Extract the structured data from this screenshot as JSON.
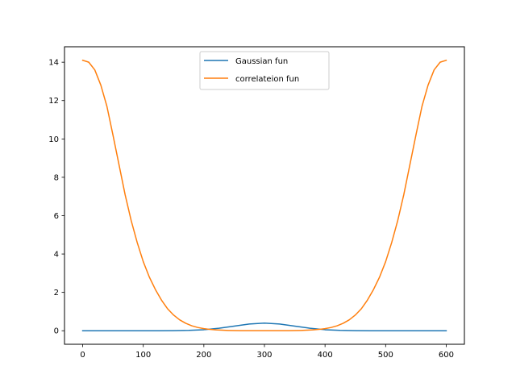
{
  "chart_data": {
    "type": "line",
    "title": "",
    "xlabel": "",
    "ylabel": "",
    "xlim": [
      -30,
      630
    ],
    "ylim": [
      -0.705,
      14.805
    ],
    "xticks": [
      0,
      100,
      200,
      300,
      400,
      500,
      600
    ],
    "yticks": [
      0,
      2,
      4,
      6,
      8,
      10,
      12,
      14
    ],
    "x_tick_labels": [
      "0",
      "100",
      "200",
      "300",
      "400",
      "500",
      "600"
    ],
    "y_tick_labels": [
      "0",
      "2",
      "4",
      "6",
      "8",
      "10",
      "12",
      "14"
    ],
    "grid": false,
    "legend_position": "top-center",
    "series": [
      {
        "name": "Gaussian fun",
        "color": "#1f77b4",
        "x": [
          0,
          25,
          50,
          75,
          100,
          125,
          150,
          175,
          200,
          225,
          250,
          275,
          300,
          325,
          350,
          375,
          400,
          425,
          450,
          475,
          500,
          525,
          550,
          575,
          600
        ],
        "y": [
          0.0,
          0.0,
          0.0,
          0.0,
          0.0,
          0.0,
          0.004,
          0.018,
          0.054,
          0.13,
          0.242,
          0.352,
          0.399,
          0.352,
          0.242,
          0.13,
          0.054,
          0.018,
          0.004,
          0.0,
          0.0,
          0.0,
          0.0,
          0.0,
          0.0
        ]
      },
      {
        "name": "correlateion fun",
        "color": "#ff7f0e",
        "x": [
          0,
          10,
          20,
          30,
          40,
          50,
          60,
          70,
          80,
          90,
          100,
          110,
          120,
          130,
          140,
          150,
          160,
          170,
          180,
          190,
          200,
          210,
          220,
          230,
          240,
          250,
          260,
          270,
          280,
          290,
          300,
          310,
          320,
          330,
          340,
          350,
          360,
          370,
          380,
          390,
          400,
          410,
          420,
          430,
          440,
          450,
          460,
          470,
          480,
          490,
          500,
          510,
          520,
          530,
          540,
          550,
          560,
          570,
          580,
          590,
          600
        ],
        "y": [
          14.1,
          14.0,
          13.6,
          12.8,
          11.7,
          10.2,
          8.65,
          7.1,
          5.75,
          4.6,
          3.6,
          2.8,
          2.15,
          1.6,
          1.15,
          0.82,
          0.57,
          0.39,
          0.26,
          0.17,
          0.11,
          0.07,
          0.045,
          0.028,
          0.017,
          0.01,
          0.006,
          0.004,
          0.003,
          0.002,
          0.002,
          0.002,
          0.003,
          0.004,
          0.006,
          0.01,
          0.017,
          0.028,
          0.045,
          0.07,
          0.11,
          0.17,
          0.26,
          0.39,
          0.57,
          0.82,
          1.15,
          1.6,
          2.15,
          2.8,
          3.6,
          4.6,
          5.75,
          7.1,
          8.65,
          10.2,
          11.7,
          12.8,
          13.6,
          14.0,
          14.1
        ]
      }
    ]
  }
}
